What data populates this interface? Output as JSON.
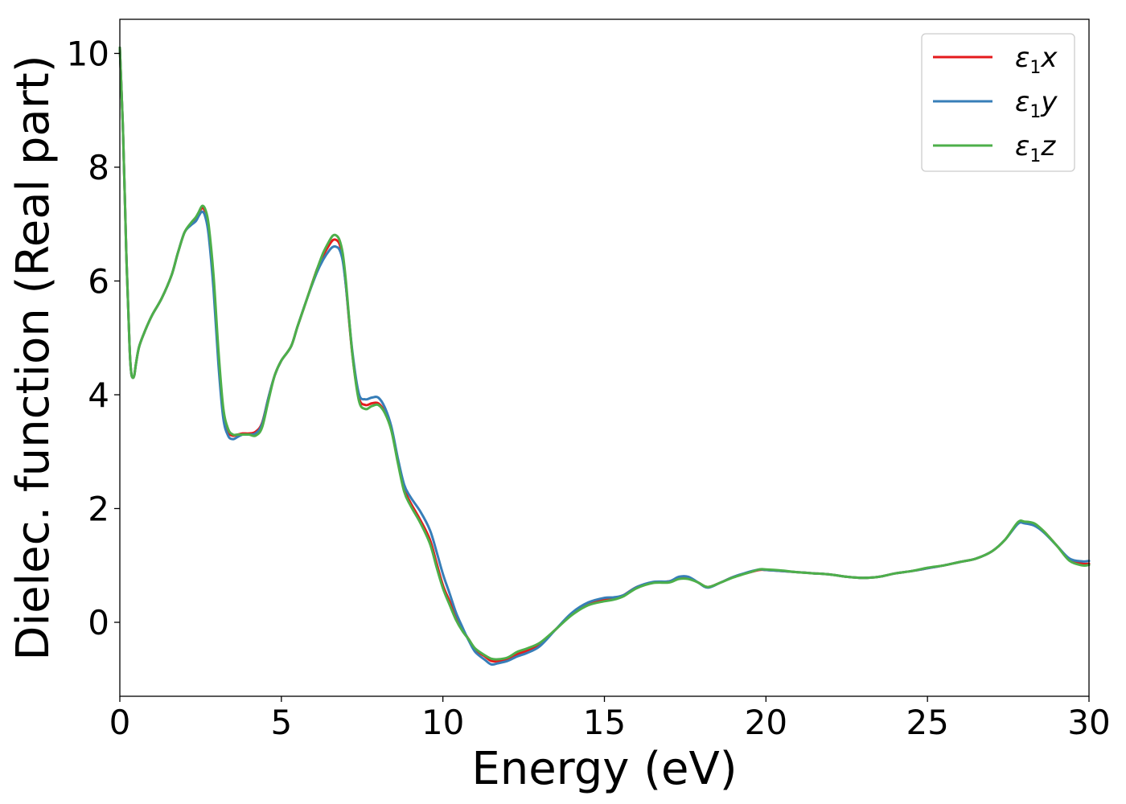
{
  "chart_data": {
    "type": "line",
    "title": "",
    "xlabel": "Energy (eV)",
    "ylabel": "Dielec. function (Real part)",
    "xlim": [
      0,
      30
    ],
    "ylim": [
      -1.3,
      10.6
    ],
    "xticks": [
      0,
      5,
      10,
      15,
      20,
      25,
      30
    ],
    "yticks": [
      0,
      2,
      4,
      6,
      8,
      10
    ],
    "grid": false,
    "legend_position": "top-right",
    "series": [
      {
        "name": "ε1x",
        "legend": {
          "base": "ε",
          "sub": "1",
          "var": "x"
        },
        "color": "#e41a1c",
        "x": [
          0,
          0.1,
          0.2,
          0.3,
          0.35,
          0.4,
          0.45,
          0.5,
          0.6,
          0.8,
          1.0,
          1.3,
          1.6,
          1.8,
          2.0,
          2.2,
          2.35,
          2.45,
          2.55,
          2.65,
          2.75,
          2.9,
          3.05,
          3.2,
          3.35,
          3.5,
          3.65,
          3.8,
          4.0,
          4.2,
          4.4,
          4.6,
          4.8,
          5.0,
          5.3,
          5.5,
          5.8,
          6.1,
          6.3,
          6.5,
          6.6,
          6.7,
          6.8,
          6.9,
          7.0,
          7.2,
          7.4,
          7.6,
          7.8,
          8.0,
          8.2,
          8.4,
          8.6,
          8.8,
          9.0,
          9.3,
          9.6,
          9.8,
          10.0,
          10.2,
          10.4,
          10.6,
          10.8,
          11.0,
          11.3,
          11.5,
          11.7,
          12.0,
          12.3,
          12.6,
          13.0,
          13.5,
          14.0,
          14.5,
          15.0,
          15.3,
          15.6,
          16.0,
          16.5,
          17.0,
          17.3,
          17.6,
          17.9,
          18.2,
          18.6,
          19.0,
          19.5,
          19.8,
          20.0,
          20.5,
          21.0,
          21.5,
          22.0,
          22.5,
          23.0,
          23.5,
          24.0,
          24.5,
          25.0,
          25.5,
          26.0,
          26.5,
          27.0,
          27.4,
          27.8,
          28.0,
          28.3,
          28.6,
          29.0,
          29.4,
          29.8,
          30.0
        ],
        "y": [
          10.1,
          8.6,
          6.5,
          4.85,
          4.4,
          4.3,
          4.35,
          4.55,
          4.85,
          5.15,
          5.4,
          5.7,
          6.1,
          6.5,
          6.85,
          7.0,
          7.1,
          7.2,
          7.28,
          7.2,
          6.9,
          6.0,
          4.7,
          3.7,
          3.35,
          3.28,
          3.3,
          3.32,
          3.32,
          3.35,
          3.5,
          3.95,
          4.35,
          4.6,
          4.85,
          5.2,
          5.7,
          6.2,
          6.45,
          6.65,
          6.72,
          6.72,
          6.65,
          6.4,
          5.9,
          4.7,
          3.95,
          3.82,
          3.85,
          3.85,
          3.7,
          3.4,
          2.85,
          2.35,
          2.1,
          1.8,
          1.45,
          1.05,
          0.65,
          0.38,
          0.1,
          -0.12,
          -0.3,
          -0.48,
          -0.6,
          -0.68,
          -0.68,
          -0.65,
          -0.56,
          -0.5,
          -0.38,
          -0.12,
          0.15,
          0.32,
          0.4,
          0.42,
          0.48,
          0.62,
          0.7,
          0.72,
          0.78,
          0.78,
          0.7,
          0.62,
          0.7,
          0.8,
          0.88,
          0.92,
          0.92,
          0.9,
          0.88,
          0.86,
          0.84,
          0.8,
          0.78,
          0.8,
          0.86,
          0.9,
          0.95,
          1.0,
          1.06,
          1.12,
          1.25,
          1.45,
          1.75,
          1.76,
          1.72,
          1.6,
          1.35,
          1.1,
          1.03,
          1.03
        ]
      },
      {
        "name": "ε1y",
        "legend": {
          "base": "ε",
          "sub": "1",
          "var": "y"
        },
        "color": "#377eb8",
        "x": [
          0,
          0.1,
          0.2,
          0.3,
          0.35,
          0.4,
          0.45,
          0.5,
          0.6,
          0.8,
          1.0,
          1.3,
          1.6,
          1.8,
          2.0,
          2.2,
          2.35,
          2.45,
          2.55,
          2.65,
          2.75,
          2.9,
          3.05,
          3.2,
          3.35,
          3.5,
          3.65,
          3.8,
          4.0,
          4.2,
          4.4,
          4.6,
          4.8,
          5.0,
          5.3,
          5.5,
          5.8,
          6.1,
          6.3,
          6.5,
          6.6,
          6.7,
          6.8,
          6.9,
          7.0,
          7.2,
          7.4,
          7.6,
          7.8,
          8.0,
          8.2,
          8.4,
          8.6,
          8.8,
          9.0,
          9.3,
          9.6,
          9.8,
          10.0,
          10.2,
          10.4,
          10.6,
          10.8,
          11.0,
          11.3,
          11.5,
          11.7,
          12.0,
          12.3,
          12.6,
          13.0,
          13.5,
          14.0,
          14.5,
          15.0,
          15.3,
          15.6,
          16.0,
          16.5,
          17.0,
          17.3,
          17.6,
          17.9,
          18.2,
          18.6,
          19.0,
          19.5,
          19.8,
          20.0,
          20.5,
          21.0,
          21.5,
          22.0,
          22.5,
          23.0,
          23.5,
          24.0,
          24.5,
          25.0,
          25.5,
          26.0,
          26.5,
          27.0,
          27.4,
          27.8,
          28.0,
          28.3,
          28.6,
          29.0,
          29.4,
          29.8,
          30.0
        ],
        "y": [
          10.1,
          8.6,
          6.5,
          4.85,
          4.4,
          4.3,
          4.35,
          4.55,
          4.85,
          5.15,
          5.4,
          5.7,
          6.1,
          6.5,
          6.85,
          6.98,
          7.05,
          7.15,
          7.22,
          7.12,
          6.8,
          5.85,
          4.55,
          3.6,
          3.28,
          3.22,
          3.26,
          3.3,
          3.3,
          3.32,
          3.48,
          3.95,
          4.35,
          4.6,
          4.85,
          5.2,
          5.7,
          6.15,
          6.38,
          6.55,
          6.6,
          6.6,
          6.55,
          6.35,
          5.9,
          4.75,
          4.02,
          3.92,
          3.95,
          3.95,
          3.78,
          3.45,
          2.9,
          2.42,
          2.2,
          1.95,
          1.62,
          1.25,
          0.85,
          0.52,
          0.18,
          -0.08,
          -0.32,
          -0.52,
          -0.66,
          -0.74,
          -0.72,
          -0.68,
          -0.6,
          -0.54,
          -0.42,
          -0.12,
          0.17,
          0.35,
          0.43,
          0.44,
          0.48,
          0.62,
          0.71,
          0.72,
          0.8,
          0.8,
          0.7,
          0.61,
          0.7,
          0.8,
          0.89,
          0.93,
          0.92,
          0.9,
          0.88,
          0.86,
          0.84,
          0.8,
          0.78,
          0.8,
          0.86,
          0.9,
          0.95,
          1.0,
          1.06,
          1.12,
          1.25,
          1.45,
          1.73,
          1.74,
          1.7,
          1.58,
          1.35,
          1.12,
          1.07,
          1.08
        ]
      },
      {
        "name": "ε1z",
        "legend": {
          "base": "ε",
          "sub": "1",
          "var": "z"
        },
        "color": "#4daf4a",
        "x": [
          0,
          0.1,
          0.2,
          0.3,
          0.35,
          0.4,
          0.45,
          0.5,
          0.6,
          0.8,
          1.0,
          1.3,
          1.6,
          1.8,
          2.0,
          2.2,
          2.35,
          2.45,
          2.55,
          2.65,
          2.75,
          2.9,
          3.05,
          3.2,
          3.35,
          3.5,
          3.65,
          3.8,
          4.0,
          4.2,
          4.4,
          4.6,
          4.8,
          5.0,
          5.3,
          5.5,
          5.8,
          6.1,
          6.3,
          6.5,
          6.6,
          6.7,
          6.8,
          6.9,
          7.0,
          7.2,
          7.4,
          7.6,
          7.8,
          8.0,
          8.2,
          8.4,
          8.6,
          8.8,
          9.0,
          9.3,
          9.6,
          9.8,
          10.0,
          10.2,
          10.4,
          10.6,
          10.8,
          11.0,
          11.3,
          11.5,
          11.7,
          12.0,
          12.3,
          12.6,
          13.0,
          13.5,
          14.0,
          14.5,
          15.0,
          15.3,
          15.6,
          16.0,
          16.5,
          17.0,
          17.3,
          17.6,
          17.9,
          18.2,
          18.6,
          19.0,
          19.5,
          19.8,
          20.0,
          20.5,
          21.0,
          21.5,
          22.0,
          22.5,
          23.0,
          23.5,
          24.0,
          24.5,
          25.0,
          25.5,
          26.0,
          26.5,
          27.0,
          27.4,
          27.8,
          28.0,
          28.3,
          28.6,
          29.0,
          29.4,
          29.8,
          30.0
        ],
        "y": [
          10.1,
          8.6,
          6.5,
          4.85,
          4.4,
          4.3,
          4.35,
          4.55,
          4.85,
          5.15,
          5.4,
          5.7,
          6.1,
          6.5,
          6.85,
          7.02,
          7.12,
          7.22,
          7.32,
          7.25,
          6.98,
          6.1,
          4.8,
          3.78,
          3.4,
          3.3,
          3.3,
          3.3,
          3.3,
          3.28,
          3.42,
          3.9,
          4.35,
          4.6,
          4.85,
          5.2,
          5.7,
          6.2,
          6.5,
          6.72,
          6.8,
          6.8,
          6.72,
          6.48,
          5.98,
          4.7,
          3.9,
          3.75,
          3.8,
          3.82,
          3.68,
          3.38,
          2.82,
          2.3,
          2.05,
          1.75,
          1.38,
          0.98,
          0.6,
          0.32,
          0.05,
          -0.15,
          -0.3,
          -0.46,
          -0.58,
          -0.64,
          -0.65,
          -0.62,
          -0.52,
          -0.46,
          -0.36,
          -0.12,
          0.13,
          0.3,
          0.37,
          0.4,
          0.46,
          0.6,
          0.69,
          0.7,
          0.76,
          0.76,
          0.7,
          0.62,
          0.7,
          0.79,
          0.88,
          0.93,
          0.93,
          0.91,
          0.88,
          0.86,
          0.84,
          0.8,
          0.78,
          0.8,
          0.86,
          0.9,
          0.96,
          1.0,
          1.06,
          1.12,
          1.25,
          1.45,
          1.76,
          1.77,
          1.74,
          1.6,
          1.35,
          1.08,
          1.0,
          1.01
        ]
      }
    ]
  }
}
